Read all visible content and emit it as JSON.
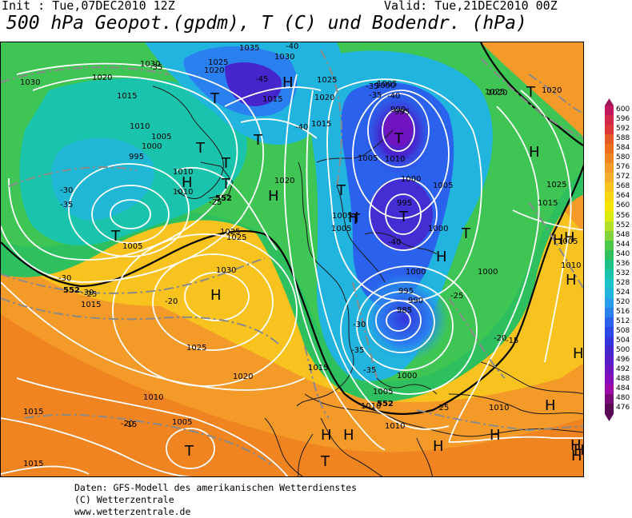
{
  "header": {
    "init": "Init : Tue,07DEC2010 12Z",
    "valid": "Valid: Tue,21DEC2010 00Z",
    "title": "500 hPa Geopot.(gpdm), T (C) und Bodendr. (hPa)"
  },
  "legend": {
    "unit": "gpdm",
    "levels": [
      {
        "label": "600",
        "color": "#c0175e"
      },
      {
        "label": "596",
        "color": "#cf2a4a"
      },
      {
        "label": "592",
        "color": "#dc3a3a"
      },
      {
        "label": "588",
        "color": "#e65a26"
      },
      {
        "label": "584",
        "color": "#ec6f1c"
      },
      {
        "label": "580",
        "color": "#f08420"
      },
      {
        "label": "576",
        "color": "#f39a28"
      },
      {
        "label": "572",
        "color": "#f5ae2c"
      },
      {
        "label": "568",
        "color": "#f8c31e"
      },
      {
        "label": "564",
        "color": "#fad60e"
      },
      {
        "label": "560",
        "color": "#f4e400"
      },
      {
        "label": "556",
        "color": "#dbea0e"
      },
      {
        "label": "552",
        "color": "#b3e12a"
      },
      {
        "label": "548",
        "color": "#82d43a"
      },
      {
        "label": "544",
        "color": "#4ec84a"
      },
      {
        "label": "540",
        "color": "#2ec05e"
      },
      {
        "label": "536",
        "color": "#1ec085"
      },
      {
        "label": "532",
        "color": "#1ac4ac"
      },
      {
        "label": "528",
        "color": "#1cc3c9"
      },
      {
        "label": "524",
        "color": "#20b4de"
      },
      {
        "label": "520",
        "color": "#2a9cec"
      },
      {
        "label": "516",
        "color": "#2b80f0"
      },
      {
        "label": "512",
        "color": "#2a62ee"
      },
      {
        "label": "508",
        "color": "#2c48e6"
      },
      {
        "label": "504",
        "color": "#3434dc"
      },
      {
        "label": "500",
        "color": "#4626cc"
      },
      {
        "label": "496",
        "color": "#5a1cc6"
      },
      {
        "label": "492",
        "color": "#7014c0"
      },
      {
        "label": "488",
        "color": "#880ebc"
      },
      {
        "label": "484",
        "color": "#9c0aa8"
      },
      {
        "label": "480",
        "color": "#7a0a78"
      },
      {
        "label": "476",
        "color": "#5a0a54"
      }
    ]
  },
  "map": {
    "pressure_labels": [
      {
        "t": "1030"
      },
      {
        "t": "1035"
      },
      {
        "t": "1030"
      },
      {
        "t": "1025"
      },
      {
        "t": "1020"
      },
      {
        "t": "1025"
      },
      {
        "t": "1020"
      },
      {
        "t": "1030"
      },
      {
        "t": "1020"
      },
      {
        "t": "1015"
      },
      {
        "t": "1010"
      },
      {
        "t": "1005"
      },
      {
        "t": "1000"
      },
      {
        "t": "995"
      },
      {
        "t": "1010"
      },
      {
        "t": "1010"
      },
      {
        "t": "1005"
      },
      {
        "t": "1025"
      },
      {
        "t": "1015"
      },
      {
        "t": "1020"
      },
      {
        "t": "1010"
      },
      {
        "t": "1005"
      },
      {
        "t": "1000"
      },
      {
        "t": "990"
      },
      {
        "t": "995"
      },
      {
        "t": "1005"
      },
      {
        "t": "1000"
      },
      {
        "t": "995"
      },
      {
        "t": "1005"
      },
      {
        "t": "1005"
      },
      {
        "t": "1000"
      },
      {
        "t": "1005"
      },
      {
        "t": "1000"
      },
      {
        "t": "1000"
      },
      {
        "t": "995"
      },
      {
        "t": "990"
      },
      {
        "t": "985"
      },
      {
        "t": "1015"
      },
      {
        "t": "1000"
      },
      {
        "t": "1005"
      },
      {
        "t": "1010"
      },
      {
        "t": "1010"
      },
      {
        "t": "1025"
      },
      {
        "t": "1030"
      },
      {
        "t": "1025"
      },
      {
        "t": "1020"
      },
      {
        "t": "1015"
      },
      {
        "t": "1010"
      },
      {
        "t": "1005"
      },
      {
        "t": "1015"
      },
      {
        "t": "1015"
      },
      {
        "t": "1015"
      },
      {
        "t": "1025"
      },
      {
        "t": "1020"
      },
      {
        "t": "1020"
      },
      {
        "t": "1025"
      },
      {
        "t": "1015"
      },
      {
        "t": "1005"
      },
      {
        "t": "1010"
      },
      {
        "t": "1010"
      }
    ],
    "temperature_labels": [
      {
        "t": "-40"
      },
      {
        "t": "-45"
      },
      {
        "t": "-35"
      },
      {
        "t": "-40"
      },
      {
        "t": "-40"
      },
      {
        "t": "-35"
      },
      {
        "t": "-35"
      },
      {
        "t": "-30"
      },
      {
        "t": "-35"
      },
      {
        "t": "-30"
      },
      {
        "t": "-25"
      },
      {
        "t": "-30"
      },
      {
        "t": "-25"
      },
      {
        "t": "-20"
      },
      {
        "t": "-40"
      },
      {
        "t": "-30"
      },
      {
        "t": "-35"
      },
      {
        "t": "-35"
      },
      {
        "t": "-25"
      },
      {
        "t": "-20"
      },
      {
        "t": "-15"
      },
      {
        "t": "-25"
      },
      {
        "t": "-20"
      },
      {
        "t": "-15"
      }
    ],
    "geopot_labels": [
      {
        "t": "552"
      },
      {
        "t": "552"
      },
      {
        "t": "552"
      }
    ],
    "systems": [
      {
        "t": "H"
      },
      {
        "t": "T"
      },
      {
        "t": "T"
      },
      {
        "t": "T"
      },
      {
        "t": "T"
      },
      {
        "t": "T"
      },
      {
        "t": "H"
      },
      {
        "t": "T"
      },
      {
        "t": "H"
      },
      {
        "t": "H"
      },
      {
        "t": "T"
      },
      {
        "t": "T"
      },
      {
        "t": "H"
      },
      {
        "t": "T"
      },
      {
        "t": "T"
      },
      {
        "t": "H"
      },
      {
        "t": "T"
      },
      {
        "t": "H"
      },
      {
        "t": "T"
      },
      {
        "t": "H"
      },
      {
        "t": "H"
      },
      {
        "t": "H"
      },
      {
        "t": "H"
      },
      {
        "t": "H"
      },
      {
        "t": "T"
      },
      {
        "t": "H"
      },
      {
        "t": "H"
      },
      {
        "t": "H"
      },
      {
        "t": "H"
      },
      {
        "t": "H"
      },
      {
        "t": "T"
      },
      {
        "t": "H"
      },
      {
        "t": "H"
      }
    ]
  },
  "footer": {
    "line1": "Daten: GFS-Modell des amerikanischen Wetterdienstes",
    "line2": "(C) Wetterzentrale",
    "line3": "www.wetterzentrale.de"
  }
}
